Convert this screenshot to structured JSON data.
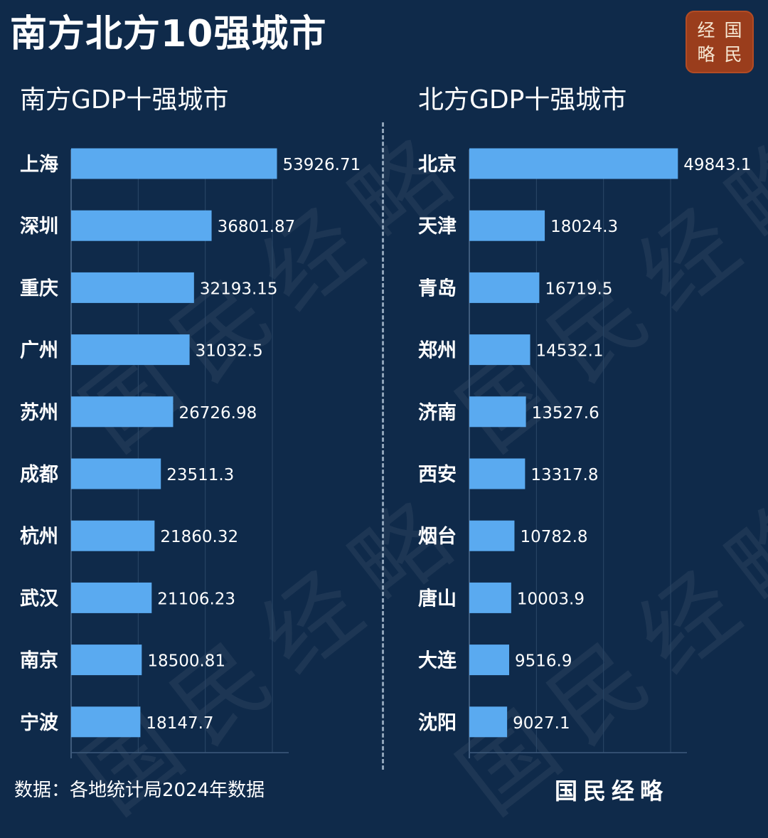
{
  "title": "南方北方10强城市",
  "seal": [
    "经",
    "国",
    "略",
    "民"
  ],
  "source": "数据：各地统计局2024年数据",
  "footer_brand": "国民经略",
  "watermark": "国民经略",
  "colors": {
    "background": "#0f2a4a",
    "bar": "#5aaaf0"
  },
  "chart_data": [
    {
      "type": "bar",
      "orientation": "horizontal",
      "title": "南方GDP十强城市",
      "categories": [
        "上海",
        "深圳",
        "重庆",
        "广州",
        "苏州",
        "成都",
        "杭州",
        "武汉",
        "南京",
        "宁波"
      ],
      "values": [
        53926.71,
        36801.87,
        32193.15,
        31032.5,
        26726.98,
        23511.3,
        21860.32,
        21106.23,
        18500.81,
        18147.7
      ],
      "value_labels": [
        "53926.71",
        "36801.87",
        "32193.15",
        "31032.5",
        "26726.98",
        "23511.3",
        "21860.32",
        "21106.23",
        "18500.81",
        "18147.7"
      ],
      "xlim": [
        0,
        57000
      ],
      "grid": true
    },
    {
      "type": "bar",
      "orientation": "horizontal",
      "title": "北方GDP十强城市",
      "categories": [
        "北京",
        "天津",
        "青岛",
        "郑州",
        "济南",
        "西安",
        "烟台",
        "唐山",
        "大连",
        "沈阳"
      ],
      "values": [
        49843.1,
        18024.3,
        16719.5,
        14532.1,
        13527.6,
        13317.8,
        10782.8,
        10003.9,
        9516.9,
        9027.1
      ],
      "value_labels": [
        "49843.1",
        "18024.3",
        "16719.5",
        "14532.1",
        "13527.6",
        "13317.8",
        "10782.8",
        "10003.9",
        "9516.9",
        "9027.1"
      ],
      "xlim": [
        0,
        52000
      ],
      "grid": true
    }
  ]
}
